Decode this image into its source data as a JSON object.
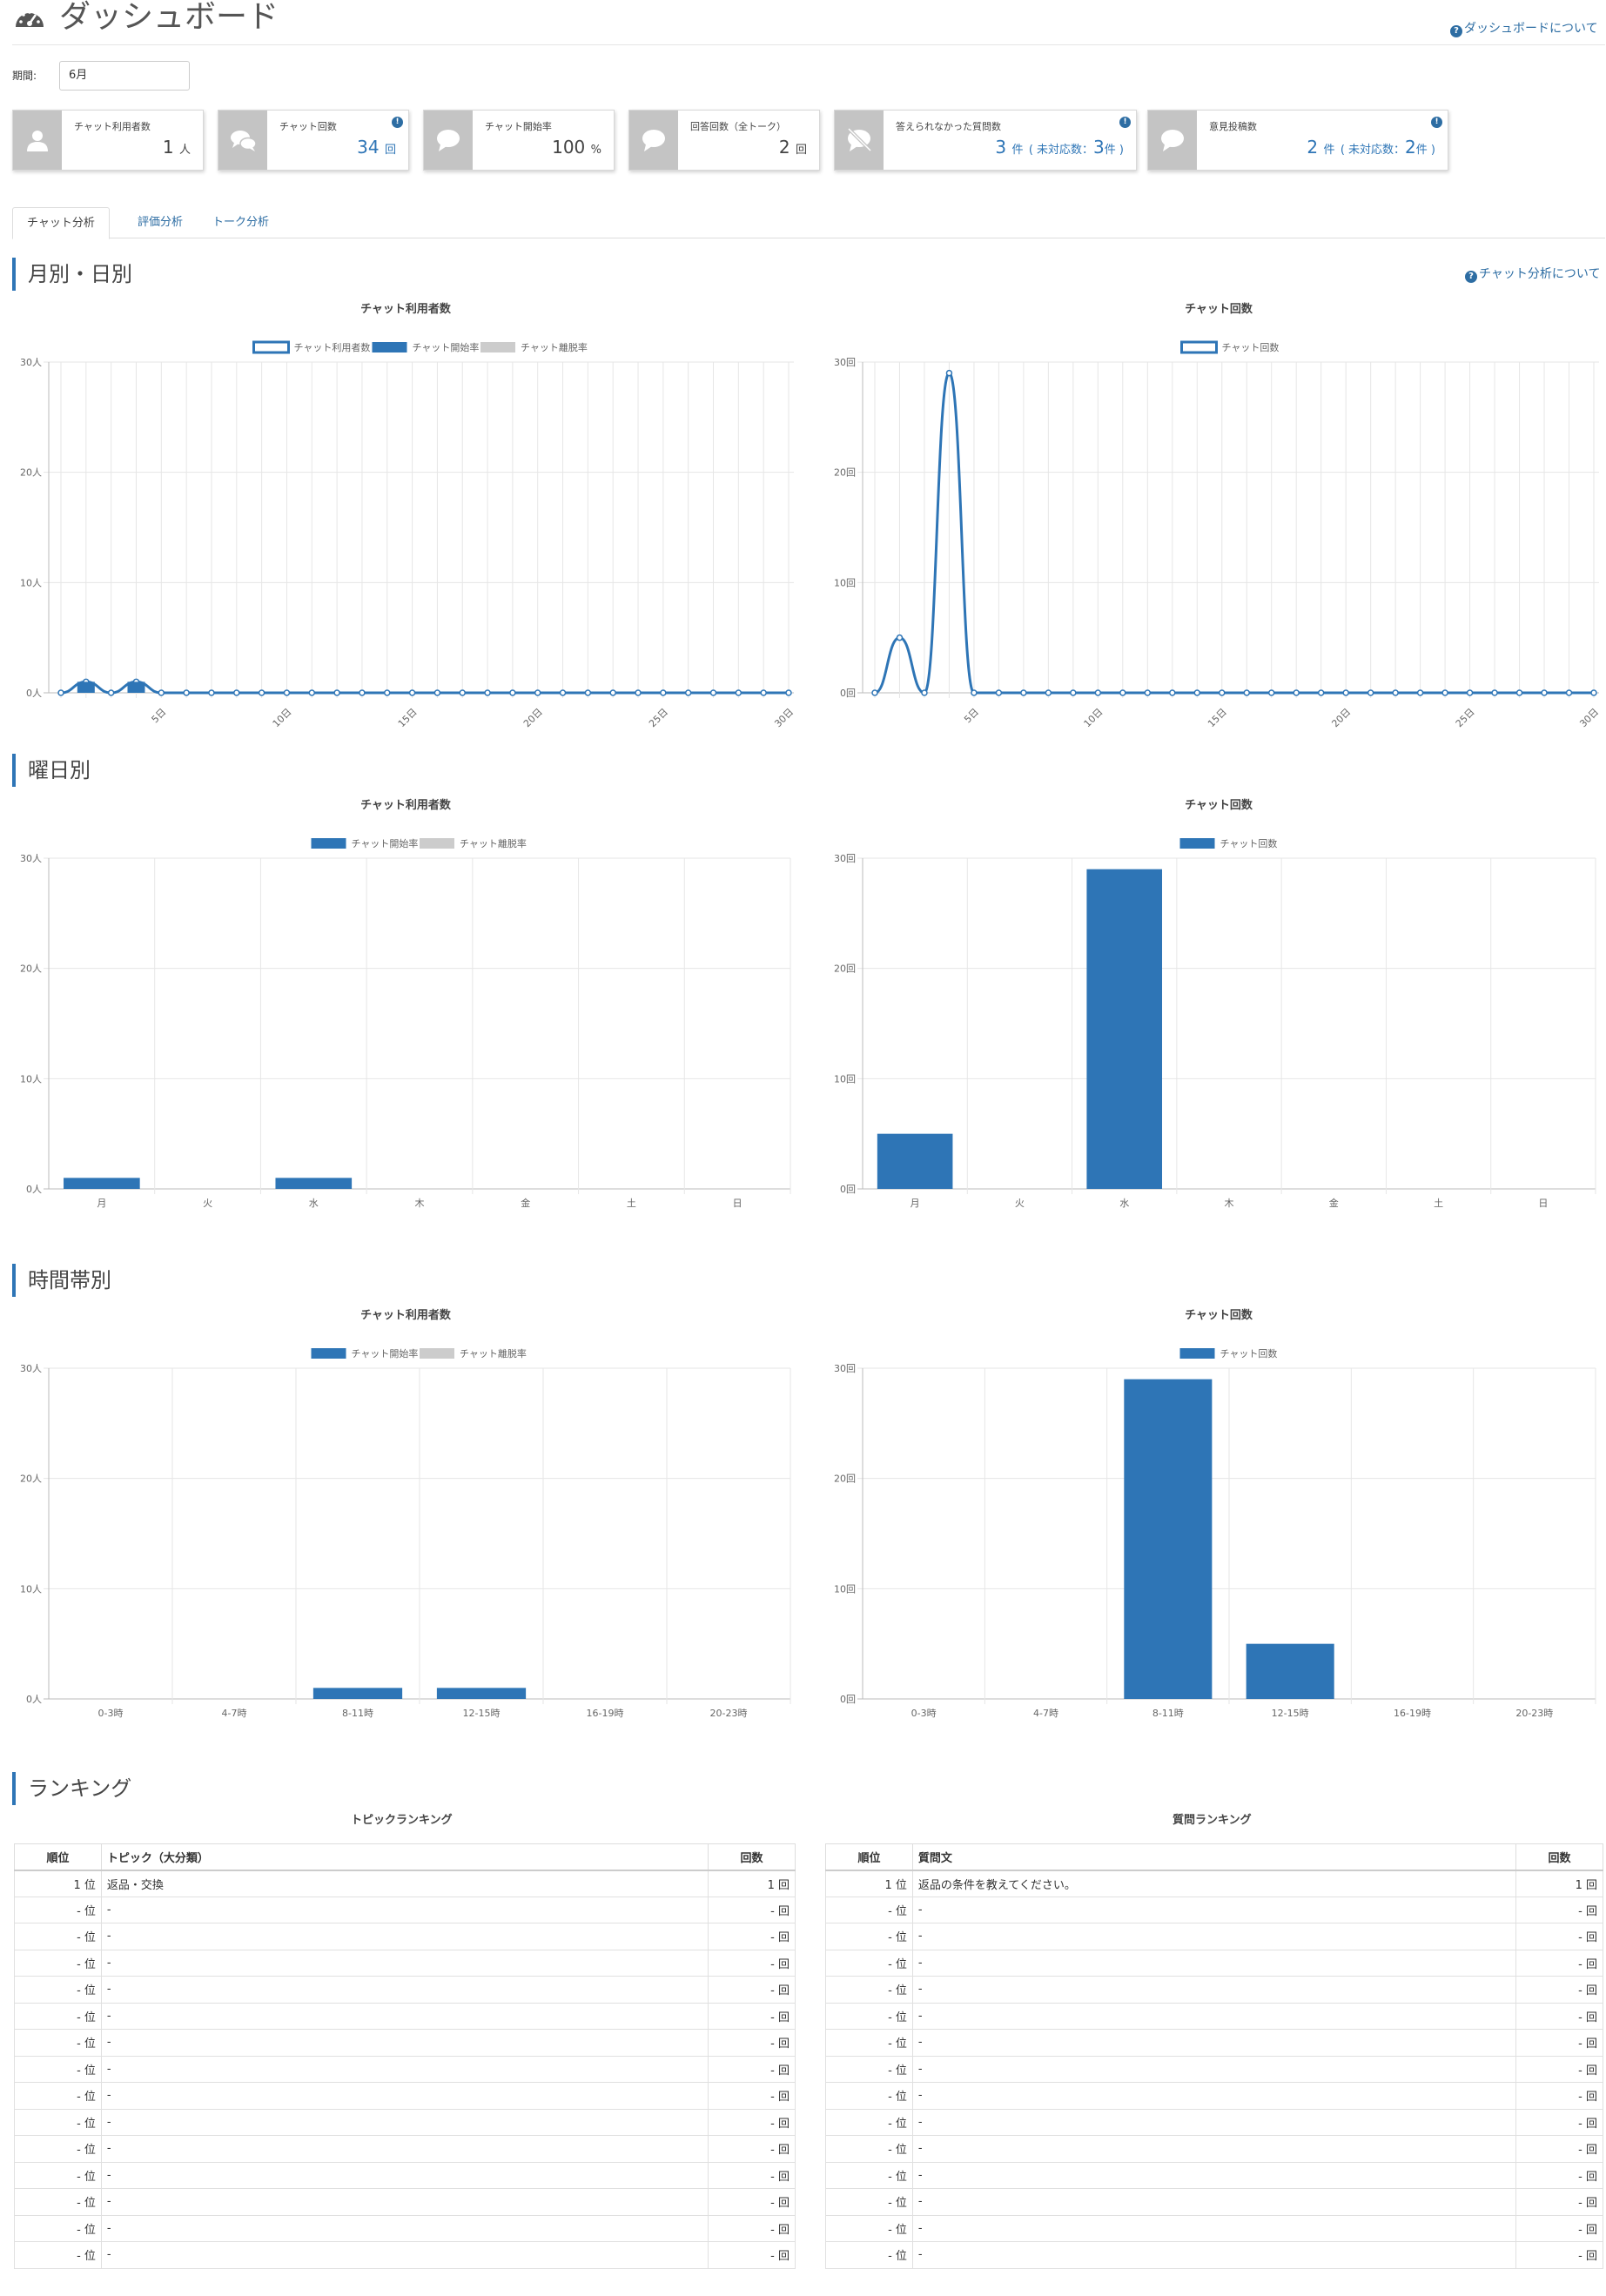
{
  "header": {
    "title": "ダッシュボード",
    "help": "ダッシュボードについて"
  },
  "period": {
    "label": "期間:",
    "value": "6月"
  },
  "cards": [
    {
      "label": "チャット利用者数",
      "value": "1",
      "unit": "人",
      "icon": "user-icon"
    },
    {
      "label": "チャット回数",
      "value": "34",
      "unit": "回",
      "icon": "chat-bubbles-icon",
      "info": true
    },
    {
      "label": "チャット開始率",
      "value": "100",
      "unit": "%",
      "icon": "speech-bubble-icon"
    },
    {
      "label": "回答回数（全トーク）",
      "value": "2",
      "unit": "回",
      "icon": "speech-bubble-icon"
    },
    {
      "label": "答えられなかった質問数",
      "value": "3",
      "unit": "件",
      "sub_open": "( 未対応数：",
      "sub_value": "3",
      "sub_unit": "件 )",
      "icon": "no-comment-icon",
      "info": true
    },
    {
      "label": "意見投稿数",
      "value": "2",
      "unit": "件",
      "sub_open": "( 未対応数：",
      "sub_value": "2",
      "sub_unit": "件 )",
      "icon": "speech-bubble-icon",
      "info": true
    }
  ],
  "tabs": [
    "チャット分析",
    "評価分析",
    "トーク分析"
  ],
  "sections": {
    "monthly": "月別・日別",
    "weekday": "曜日別",
    "hourly": "時間帯別",
    "ranking": "ランキング",
    "chat_help": "チャット分析について"
  },
  "chart_titles": {
    "users": "チャット利用者数",
    "count": "チャット回数"
  },
  "legend": {
    "users": "チャット利用者数",
    "start_rate": "チャット開始率",
    "leave_rate": "チャット離脱率",
    "count": "チャット回数"
  },
  "colors": {
    "accent": "#2e75b6",
    "leave": "#cccccc",
    "card_icon_bg": "#c4c4c4",
    "link": "#2d6da3"
  },
  "chart_data": [
    {
      "id": "daily-users",
      "type": "line",
      "title": "チャット利用者数",
      "x_ticks": [
        "5日",
        "10日",
        "15日",
        "20日",
        "25日",
        "30日"
      ],
      "y_ticks": [
        "0人",
        "10人",
        "20人",
        "30人"
      ],
      "ylim": [
        0,
        30
      ],
      "series": [
        {
          "name": "チャット利用者数",
          "values": [
            0,
            1,
            0,
            1,
            0,
            0,
            0,
            0,
            0,
            0,
            0,
            0,
            0,
            0,
            0,
            0,
            0,
            0,
            0,
            0,
            0,
            0,
            0,
            0,
            0,
            0,
            0,
            0,
            0,
            0
          ]
        },
        {
          "name": "チャット開始率",
          "values": [
            0,
            1,
            0,
            1,
            0,
            0,
            0,
            0,
            0,
            0,
            0,
            0,
            0,
            0,
            0,
            0,
            0,
            0,
            0,
            0,
            0,
            0,
            0,
            0,
            0,
            0,
            0,
            0,
            0,
            0
          ]
        },
        {
          "name": "チャット離脱率",
          "values": [
            0,
            0,
            0,
            0,
            0,
            0,
            0,
            0,
            0,
            0,
            0,
            0,
            0,
            0,
            0,
            0,
            0,
            0,
            0,
            0,
            0,
            0,
            0,
            0,
            0,
            0,
            0,
            0,
            0,
            0
          ]
        }
      ]
    },
    {
      "id": "daily-count",
      "type": "line",
      "title": "チャット回数",
      "x_ticks": [
        "5日",
        "10日",
        "15日",
        "20日",
        "25日",
        "30日"
      ],
      "y_ticks": [
        "0回",
        "10回",
        "20回",
        "30回"
      ],
      "ylim": [
        0,
        30
      ],
      "series": [
        {
          "name": "チャット回数",
          "values": [
            0,
            5,
            0,
            29,
            0,
            0,
            0,
            0,
            0,
            0,
            0,
            0,
            0,
            0,
            0,
            0,
            0,
            0,
            0,
            0,
            0,
            0,
            0,
            0,
            0,
            0,
            0,
            0,
            0,
            0
          ]
        }
      ]
    },
    {
      "id": "weekday-users",
      "type": "bar",
      "title": "チャット利用者数",
      "categories": [
        "月",
        "火",
        "水",
        "木",
        "金",
        "土",
        "日"
      ],
      "y_ticks": [
        "0人",
        "10人",
        "20人",
        "30人"
      ],
      "ylim": [
        0,
        30
      ],
      "series": [
        {
          "name": "チャット開始率",
          "values": [
            1,
            0,
            1,
            0,
            0,
            0,
            0
          ]
        },
        {
          "name": "チャット離脱率",
          "values": [
            0,
            0,
            0,
            0,
            0,
            0,
            0
          ]
        }
      ]
    },
    {
      "id": "weekday-count",
      "type": "bar",
      "title": "チャット回数",
      "categories": [
        "月",
        "火",
        "水",
        "木",
        "金",
        "土",
        "日"
      ],
      "y_ticks": [
        "0回",
        "10回",
        "20回",
        "30回"
      ],
      "ylim": [
        0,
        30
      ],
      "series": [
        {
          "name": "チャット回数",
          "values": [
            5,
            0,
            29,
            0,
            0,
            0,
            0
          ]
        }
      ]
    },
    {
      "id": "hourly-users",
      "type": "bar",
      "title": "チャット利用者数",
      "categories": [
        "0-3時",
        "4-7時",
        "8-11時",
        "12-15時",
        "16-19時",
        "20-23時"
      ],
      "y_ticks": [
        "0人",
        "10人",
        "20人",
        "30人"
      ],
      "ylim": [
        0,
        30
      ],
      "series": [
        {
          "name": "チャット開始率",
          "values": [
            0,
            0,
            1,
            1,
            0,
            0
          ]
        },
        {
          "name": "チャット離脱率",
          "values": [
            0,
            0,
            0,
            0,
            0,
            0
          ]
        }
      ]
    },
    {
      "id": "hourly-count",
      "type": "bar",
      "title": "チャット回数",
      "categories": [
        "0-3時",
        "4-7時",
        "8-11時",
        "12-15時",
        "16-19時",
        "20-23時"
      ],
      "y_ticks": [
        "0回",
        "10回",
        "20回",
        "30回"
      ],
      "ylim": [
        0,
        30
      ],
      "series": [
        {
          "name": "チャット回数",
          "values": [
            0,
            0,
            29,
            5,
            0,
            0
          ]
        }
      ]
    }
  ],
  "rankings": {
    "topic": {
      "title": "トピックランキング",
      "headers": [
        "順位",
        "トピック（大分類）",
        "回数"
      ],
      "rows": [
        [
          "1 位",
          "返品・交換",
          "1 回"
        ],
        [
          "- 位",
          "-",
          "- 回"
        ],
        [
          "- 位",
          "-",
          "- 回"
        ],
        [
          "- 位",
          "-",
          "- 回"
        ],
        [
          "- 位",
          "-",
          "- 回"
        ],
        [
          "- 位",
          "-",
          "- 回"
        ],
        [
          "- 位",
          "-",
          "- 回"
        ],
        [
          "- 位",
          "-",
          "- 回"
        ],
        [
          "- 位",
          "-",
          "- 回"
        ],
        [
          "- 位",
          "-",
          "- 回"
        ],
        [
          "- 位",
          "-",
          "- 回"
        ],
        [
          "- 位",
          "-",
          "- 回"
        ],
        [
          "- 位",
          "-",
          "- 回"
        ],
        [
          "- 位",
          "-",
          "- 回"
        ],
        [
          "- 位",
          "-",
          "- 回"
        ]
      ]
    },
    "question": {
      "title": "質問ランキング",
      "headers": [
        "順位",
        "質問文",
        "回数"
      ],
      "rows": [
        [
          "1 位",
          "返品の条件を教えてください。",
          "1 回"
        ],
        [
          "- 位",
          "-",
          "- 回"
        ],
        [
          "- 位",
          "-",
          "- 回"
        ],
        [
          "- 位",
          "-",
          "- 回"
        ],
        [
          "- 位",
          "-",
          "- 回"
        ],
        [
          "- 位",
          "-",
          "- 回"
        ],
        [
          "- 位",
          "-",
          "- 回"
        ],
        [
          "- 位",
          "-",
          "- 回"
        ],
        [
          "- 位",
          "-",
          "- 回"
        ],
        [
          "- 位",
          "-",
          "- 回"
        ],
        [
          "- 位",
          "-",
          "- 回"
        ],
        [
          "- 位",
          "-",
          "- 回"
        ],
        [
          "- 位",
          "-",
          "- 回"
        ],
        [
          "- 位",
          "-",
          "- 回"
        ],
        [
          "- 位",
          "-",
          "- 回"
        ]
      ]
    }
  }
}
